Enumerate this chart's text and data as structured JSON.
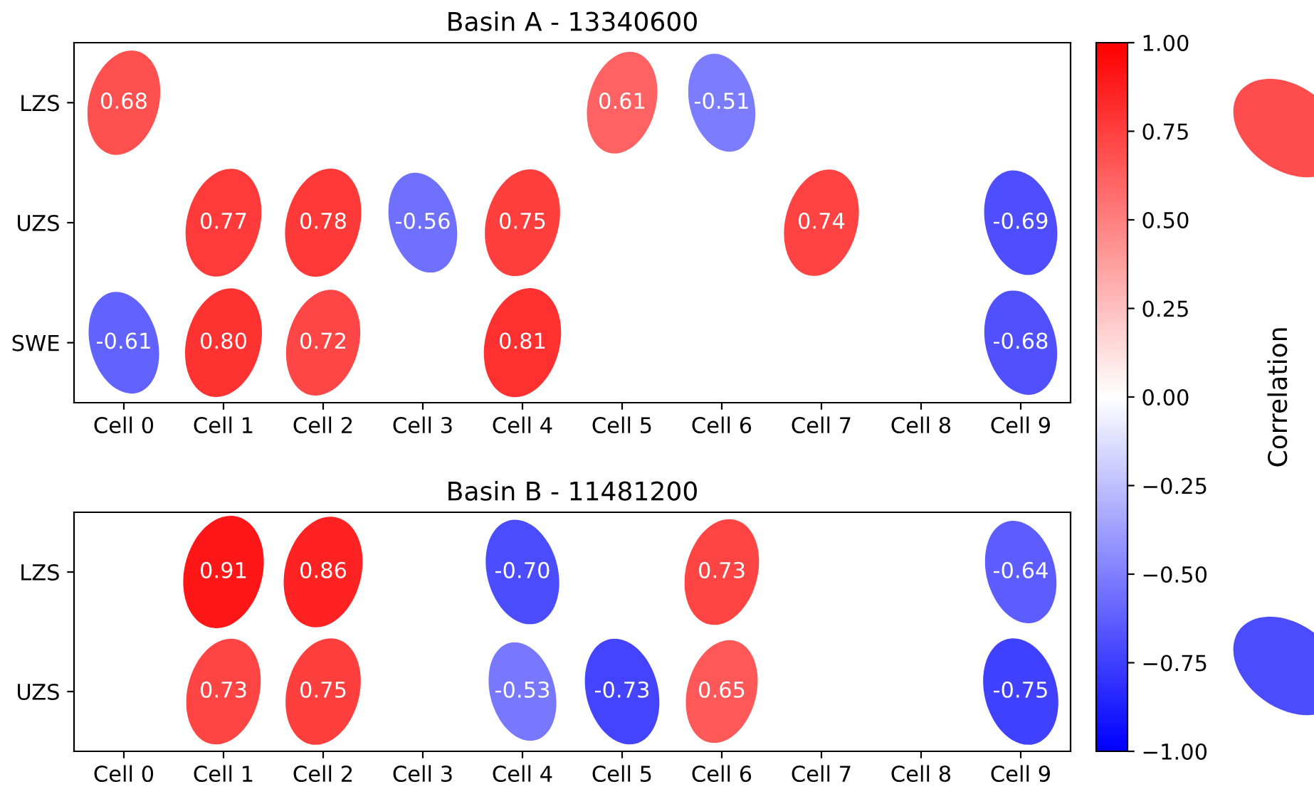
{
  "chart_data": [
    {
      "type": "heatmap",
      "title": "Basin A - 13340600",
      "categories": [
        "Cell 0",
        "Cell 1",
        "Cell 2",
        "Cell 3",
        "Cell 4",
        "Cell 5",
        "Cell 6",
        "Cell 7",
        "Cell 8",
        "Cell 9"
      ],
      "y_categories": [
        "LZS",
        "UZS",
        "SWE"
      ],
      "cells": [
        [
          0.68,
          null,
          null,
          null,
          null,
          0.61,
          -0.51,
          null,
          null,
          null
        ],
        [
          null,
          0.77,
          0.78,
          -0.56,
          0.75,
          null,
          null,
          0.74,
          null,
          -0.69
        ],
        [
          -0.61,
          0.8,
          0.72,
          null,
          0.81,
          null,
          null,
          null,
          null,
          -0.68
        ]
      ],
      "cell_labels": [
        [
          "0.68",
          null,
          null,
          null,
          null,
          "0.61",
          "-0.51",
          null,
          null,
          null
        ],
        [
          null,
          "0.77",
          "0.78",
          "-0.56",
          "0.75",
          null,
          null,
          "0.74",
          null,
          "-0.69"
        ],
        [
          "-0.61",
          "0.80",
          "0.72",
          null,
          "0.81",
          null,
          null,
          null,
          null,
          "-0.68"
        ]
      ],
      "clim": [
        -1,
        1
      ],
      "cticks": [
        {
          "value": -1,
          "label": "−1.00"
        },
        {
          "value": -0.75,
          "label": "−0.75"
        },
        {
          "value": -0.5,
          "label": "−0.50"
        },
        {
          "value": -0.25,
          "label": "−0.25"
        },
        {
          "value": 0,
          "label": "0.00"
        },
        {
          "value": 0.25,
          "label": "0.25"
        },
        {
          "value": 0.5,
          "label": "0.50"
        },
        {
          "value": 0.75,
          "label": "0.75"
        },
        {
          "value": 1,
          "label": "1.00"
        }
      ],
      "clabel": "Correlation"
    },
    {
      "type": "heatmap",
      "title": "Basin B - 11481200",
      "categories": [
        "Cell 0",
        "Cell 1",
        "Cell 2",
        "Cell 3",
        "Cell 4",
        "Cell 5",
        "Cell 6",
        "Cell 7",
        "Cell 8",
        "Cell 9"
      ],
      "y_categories": [
        "LZS",
        "UZS"
      ],
      "cells": [
        [
          null,
          0.91,
          0.86,
          null,
          -0.7,
          null,
          0.73,
          null,
          null,
          -0.64
        ],
        [
          null,
          0.73,
          0.75,
          null,
          -0.53,
          -0.73,
          0.65,
          null,
          null,
          -0.75
        ]
      ],
      "cell_labels": [
        [
          null,
          "0.91",
          "0.86",
          null,
          "-0.70",
          null,
          "0.73",
          null,
          null,
          "-0.64"
        ],
        [
          null,
          "0.73",
          "0.75",
          null,
          "-0.53",
          "-0.73",
          "0.65",
          null,
          null,
          "-0.75"
        ]
      ]
    }
  ]
}
